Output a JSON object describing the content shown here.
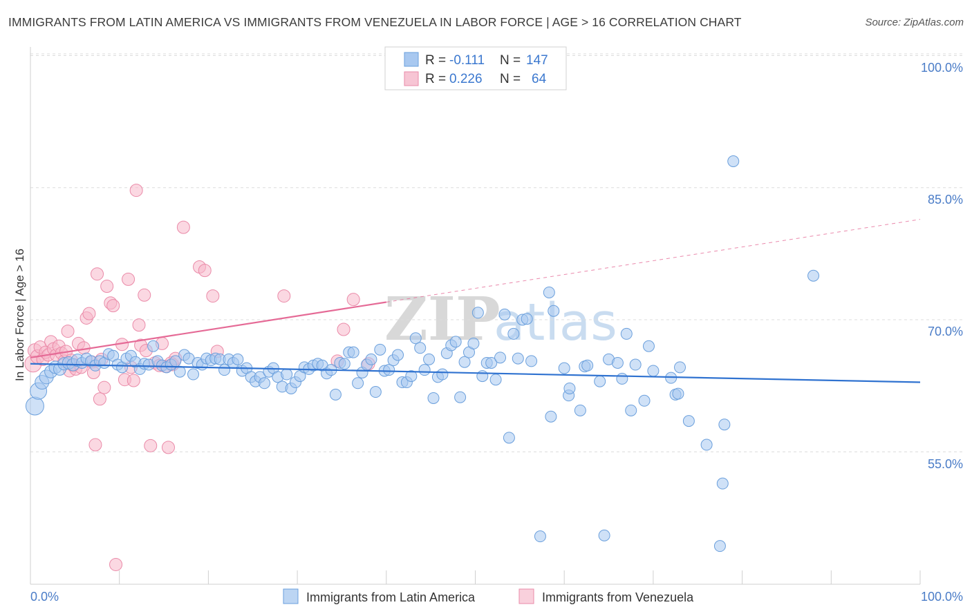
{
  "title": "IMMIGRANTS FROM LATIN AMERICA VS IMMIGRANTS FROM VENEZUELA IN LABOR FORCE | AGE > 16 CORRELATION CHART",
  "source": "Source: ZipAtlas.com",
  "watermark": {
    "zip": "ZIP",
    "atlas": "atlas"
  },
  "legend": {
    "rows": [
      {
        "r_label": "R =",
        "r_value": "-0.111",
        "n_label": "N =",
        "n_value": "147"
      },
      {
        "r_label": "R =",
        "r_value": "0.226",
        "n_label": "N =",
        "n_value": "64"
      }
    ]
  },
  "colors": {
    "blue_fill": "#a8c8f0",
    "blue_stroke": "#6a9fdc",
    "blue_line": "#2f72d0",
    "pink_fill": "#f7b8cb",
    "pink_stroke": "#ea8aa8",
    "pink_line": "#e56a96",
    "grid": "#dcdcdc",
    "tick_text": "#4a7cc7"
  },
  "chart_data": {
    "type": "scatter",
    "title": "IMMIGRANTS FROM LATIN AMERICA VS IMMIGRANTS FROM VENEZUELA IN LABOR FORCE | AGE > 16 CORRELATION CHART",
    "xlabel": "",
    "ylabel": "In Labor Force | Age > 16",
    "xlim": [
      0,
      100
    ],
    "ylim": [
      40.5,
      101.5
    ],
    "x_tick_labels": [
      "0.0%",
      "100.0%"
    ],
    "y_ticks": [
      55,
      70,
      85,
      100
    ],
    "y_tick_labels": [
      "55.0%",
      "70.0%",
      "85.0%",
      "100.0%"
    ],
    "grid": "horizontal dashed",
    "legend_position": "top-center",
    "series": [
      {
        "name": "Immigrants from Latin America",
        "color": "#a8c8f0",
        "trend": {
          "x": [
            0,
            100
          ],
          "y": [
            65.0,
            62.9
          ],
          "style": "solid"
        },
        "points": [
          [
            0.5,
            60.2,
            13
          ],
          [
            0.9,
            61.9,
            12
          ],
          [
            1.3,
            62.9,
            10
          ],
          [
            1.8,
            63.5,
            10
          ],
          [
            2.3,
            64.1,
            9
          ],
          [
            2.8,
            64.6,
            9
          ],
          [
            3.3,
            64.4,
            9
          ],
          [
            3.8,
            65.0,
            9
          ],
          [
            4.3,
            65.1,
            9
          ],
          [
            4.8,
            64.9,
            9
          ],
          [
            5.3,
            65.4,
            9
          ],
          [
            5.8,
            65.1,
            8
          ],
          [
            6.3,
            65.6,
            8
          ],
          [
            6.8,
            65.3,
            8
          ],
          [
            7.3,
            64.8,
            8
          ],
          [
            7.8,
            65.3,
            8
          ],
          [
            8.3,
            65.1,
            8
          ],
          [
            8.8,
            66.1,
            8
          ],
          [
            9.3,
            65.9,
            8
          ],
          [
            9.8,
            64.9,
            8
          ],
          [
            10.3,
            64.6,
            8
          ],
          [
            10.8,
            65.6,
            8
          ],
          [
            11.3,
            65.9,
            8
          ],
          [
            11.8,
            65.2,
            8
          ],
          [
            12.3,
            64.4,
            8
          ],
          [
            12.8,
            65.0,
            8
          ],
          [
            13.3,
            64.9,
            8
          ],
          [
            13.8,
            67.0,
            8
          ],
          [
            14.3,
            65.3,
            8
          ],
          [
            14.8,
            64.8,
            8
          ],
          [
            15.3,
            64.6,
            8
          ],
          [
            15.8,
            64.9,
            8
          ],
          [
            16.3,
            65.3,
            8
          ],
          [
            16.8,
            64.1,
            8
          ],
          [
            17.3,
            66.0,
            8
          ],
          [
            17.8,
            65.6,
            8
          ],
          [
            18.3,
            63.8,
            8
          ],
          [
            18.8,
            65.1,
            8
          ],
          [
            19.3,
            64.9,
            8
          ],
          [
            19.8,
            65.6,
            8
          ],
          [
            20.3,
            65.4,
            8
          ],
          [
            20.8,
            65.6,
            8
          ],
          [
            21.3,
            65.5,
            8
          ],
          [
            21.8,
            64.3,
            8
          ],
          [
            22.3,
            65.5,
            8
          ],
          [
            22.8,
            65.1,
            8
          ],
          [
            23.3,
            65.5,
            8
          ],
          [
            23.8,
            64.2,
            8
          ],
          [
            24.3,
            64.5,
            8
          ],
          [
            24.8,
            63.5,
            8
          ],
          [
            25.3,
            63.0,
            8
          ],
          [
            25.8,
            63.5,
            8
          ],
          [
            26.3,
            62.8,
            8
          ],
          [
            26.8,
            64.1,
            8
          ],
          [
            27.3,
            64.5,
            8
          ],
          [
            27.8,
            63.5,
            8
          ],
          [
            28.3,
            62.4,
            8
          ],
          [
            28.8,
            63.8,
            8
          ],
          [
            29.3,
            62.2,
            8
          ],
          [
            29.8,
            62.9,
            8
          ],
          [
            30.3,
            63.6,
            8
          ],
          [
            30.8,
            64.6,
            8
          ],
          [
            31.3,
            64.4,
            8
          ],
          [
            31.8,
            64.8,
            8
          ],
          [
            32.3,
            65.0,
            8
          ],
          [
            32.8,
            64.8,
            8
          ],
          [
            33.3,
            63.9,
            8
          ],
          [
            33.8,
            64.3,
            8
          ],
          [
            34.3,
            61.5,
            8
          ],
          [
            34.8,
            65.1,
            8
          ],
          [
            35.3,
            65.0,
            8
          ],
          [
            35.8,
            66.3,
            8
          ],
          [
            36.3,
            66.3,
            8
          ],
          [
            36.8,
            62.8,
            8
          ],
          [
            37.3,
            64.0,
            8
          ],
          [
            37.8,
            64.9,
            8
          ],
          [
            38.3,
            65.5,
            8
          ],
          [
            38.8,
            61.8,
            8
          ],
          [
            39.3,
            66.6,
            8
          ],
          [
            39.8,
            64.2,
            8
          ],
          [
            40.3,
            64.3,
            8
          ],
          [
            40.8,
            65.4,
            8
          ],
          [
            41.3,
            66.0,
            8
          ],
          [
            41.8,
            62.9,
            8
          ],
          [
            42.3,
            62.9,
            8
          ],
          [
            42.8,
            63.6,
            8
          ],
          [
            43.3,
            67.9,
            8
          ],
          [
            43.8,
            66.8,
            8
          ],
          [
            44.3,
            64.3,
            8
          ],
          [
            44.8,
            65.5,
            8
          ],
          [
            45.3,
            61.1,
            8
          ],
          [
            45.8,
            63.5,
            8
          ],
          [
            46.3,
            63.8,
            8
          ],
          [
            46.8,
            66.2,
            8
          ],
          [
            47.3,
            67.1,
            8
          ],
          [
            47.8,
            67.5,
            8
          ],
          [
            48.3,
            61.2,
            8
          ],
          [
            48.8,
            65.2,
            8
          ],
          [
            49.3,
            66.3,
            8
          ],
          [
            49.8,
            67.3,
            8
          ],
          [
            50.3,
            70.8,
            8
          ],
          [
            50.8,
            63.6,
            8
          ],
          [
            51.3,
            65.1,
            8
          ],
          [
            51.8,
            65.1,
            8
          ],
          [
            52.3,
            63.2,
            8
          ],
          [
            52.8,
            65.7,
            8
          ],
          [
            53.3,
            70.6,
            8
          ],
          [
            53.8,
            56.6,
            8
          ],
          [
            54.3,
            68.4,
            8
          ],
          [
            54.8,
            65.6,
            8
          ],
          [
            55.3,
            70.0,
            8
          ],
          [
            55.8,
            70.1,
            8
          ],
          [
            56.3,
            65.3,
            8
          ],
          [
            57.3,
            45.4,
            8
          ],
          [
            58.3,
            73.1,
            8
          ],
          [
            58.5,
            59.0,
            8
          ],
          [
            58.8,
            71.0,
            8
          ],
          [
            60.0,
            64.5,
            8
          ],
          [
            60.5,
            61.4,
            8
          ],
          [
            60.6,
            62.2,
            8
          ],
          [
            61.8,
            59.7,
            8
          ],
          [
            62.3,
            64.7,
            8
          ],
          [
            62.6,
            64.8,
            8
          ],
          [
            64.0,
            63.0,
            8
          ],
          [
            64.5,
            45.5,
            8
          ],
          [
            65.0,
            65.5,
            8
          ],
          [
            66.0,
            65.1,
            8
          ],
          [
            66.5,
            63.3,
            8
          ],
          [
            67.0,
            68.4,
            8
          ],
          [
            67.5,
            59.7,
            8
          ],
          [
            68.0,
            64.9,
            8
          ],
          [
            69.0,
            60.8,
            8
          ],
          [
            69.5,
            67.0,
            8
          ],
          [
            70.0,
            64.2,
            8
          ],
          [
            72.0,
            63.4,
            8
          ],
          [
            72.5,
            61.5,
            8
          ],
          [
            72.8,
            61.6,
            8
          ],
          [
            73.0,
            64.6,
            8
          ],
          [
            74.0,
            58.5,
            8
          ],
          [
            76.0,
            55.8,
            8
          ],
          [
            78.0,
            58.1,
            8
          ],
          [
            77.5,
            44.3,
            8
          ],
          [
            77.8,
            51.4,
            8
          ],
          [
            79.0,
            88.0,
            8
          ],
          [
            88.0,
            75.0,
            8
          ]
        ]
      },
      {
        "name": "Immigrants from Venezuela",
        "color": "#f7b8cb",
        "trend": {
          "x": [
            0,
            40
          ],
          "y": [
            65.7,
            72.0
          ],
          "style": "solid",
          "extension": {
            "x": [
              40,
              100
            ],
            "y": [
              72.0,
              81.4
            ],
            "style": "dashed"
          }
        },
        "points": [
          [
            0.3,
            65.0,
            12
          ],
          [
            0.5,
            66.5,
            10
          ],
          [
            0.8,
            65.8,
            10
          ],
          [
            1.1,
            66.9,
            9
          ],
          [
            1.4,
            65.5,
            9
          ],
          [
            1.7,
            66.3,
            9
          ],
          [
            2.0,
            66.0,
            9
          ],
          [
            2.3,
            67.5,
            9
          ],
          [
            2.6,
            66.7,
            9
          ],
          [
            2.9,
            66.0,
            9
          ],
          [
            3.2,
            67.0,
            9
          ],
          [
            3.5,
            66.2,
            9
          ],
          [
            3.8,
            65.3,
            9
          ],
          [
            4.0,
            66.4,
            9
          ],
          [
            4.2,
            68.7,
            9
          ],
          [
            4.4,
            64.2,
            9
          ],
          [
            4.6,
            65.4,
            9
          ],
          [
            4.8,
            64.8,
            9
          ],
          [
            5.1,
            64.4,
            9
          ],
          [
            5.4,
            67.3,
            9
          ],
          [
            5.7,
            64.6,
            9
          ],
          [
            6.0,
            66.8,
            9
          ],
          [
            6.3,
            70.2,
            9
          ],
          [
            6.6,
            70.7,
            9
          ],
          [
            6.9,
            65.2,
            9
          ],
          [
            7.1,
            64.0,
            9
          ],
          [
            7.3,
            55.8,
            9
          ],
          [
            7.5,
            75.2,
            9
          ],
          [
            7.8,
            61.0,
            9
          ],
          [
            8.0,
            65.5,
            9
          ],
          [
            8.3,
            62.3,
            9
          ],
          [
            8.6,
            73.8,
            9
          ],
          [
            9.0,
            71.9,
            9
          ],
          [
            9.3,
            71.6,
            9
          ],
          [
            9.6,
            42.2,
            9
          ],
          [
            10.3,
            67.2,
            9
          ],
          [
            10.6,
            63.2,
            9
          ],
          [
            11.0,
            74.6,
            9
          ],
          [
            11.3,
            64.6,
            9
          ],
          [
            11.6,
            63.1,
            9
          ],
          [
            11.9,
            84.7,
            9
          ],
          [
            12.2,
            69.4,
            9
          ],
          [
            12.4,
            67.1,
            9
          ],
          [
            12.8,
            72.8,
            9
          ],
          [
            13.0,
            66.5,
            9
          ],
          [
            13.5,
            55.7,
            9
          ],
          [
            14.0,
            65.1,
            9
          ],
          [
            14.5,
            64.8,
            9
          ],
          [
            14.8,
            67.3,
            9
          ],
          [
            15.2,
            64.7,
            9
          ],
          [
            15.5,
            55.5,
            9
          ],
          [
            15.8,
            65.1,
            9
          ],
          [
            16.0,
            64.9,
            9
          ],
          [
            16.3,
            65.6,
            9
          ],
          [
            17.2,
            80.5,
            9
          ],
          [
            19.0,
            76.0,
            9
          ],
          [
            19.6,
            75.6,
            9
          ],
          [
            20.5,
            72.7,
            9
          ],
          [
            21.0,
            66.4,
            9
          ],
          [
            28.5,
            72.7,
            9
          ],
          [
            34.5,
            65.3,
            9
          ],
          [
            35.2,
            68.9,
            9
          ],
          [
            36.3,
            72.3,
            9
          ],
          [
            38.0,
            65.0,
            9
          ]
        ]
      }
    ]
  },
  "y_axis_label": "In Labor Force | Age > 16",
  "x_axis_labels": {
    "left": "0.0%",
    "right": "100.0%"
  },
  "y_axis_labels": [
    "100.0%",
    "85.0%",
    "70.0%",
    "55.0%"
  ],
  "bottom_legend": [
    {
      "label": "Immigrants from Latin America"
    },
    {
      "label": "Immigrants from Venezuela"
    }
  ]
}
